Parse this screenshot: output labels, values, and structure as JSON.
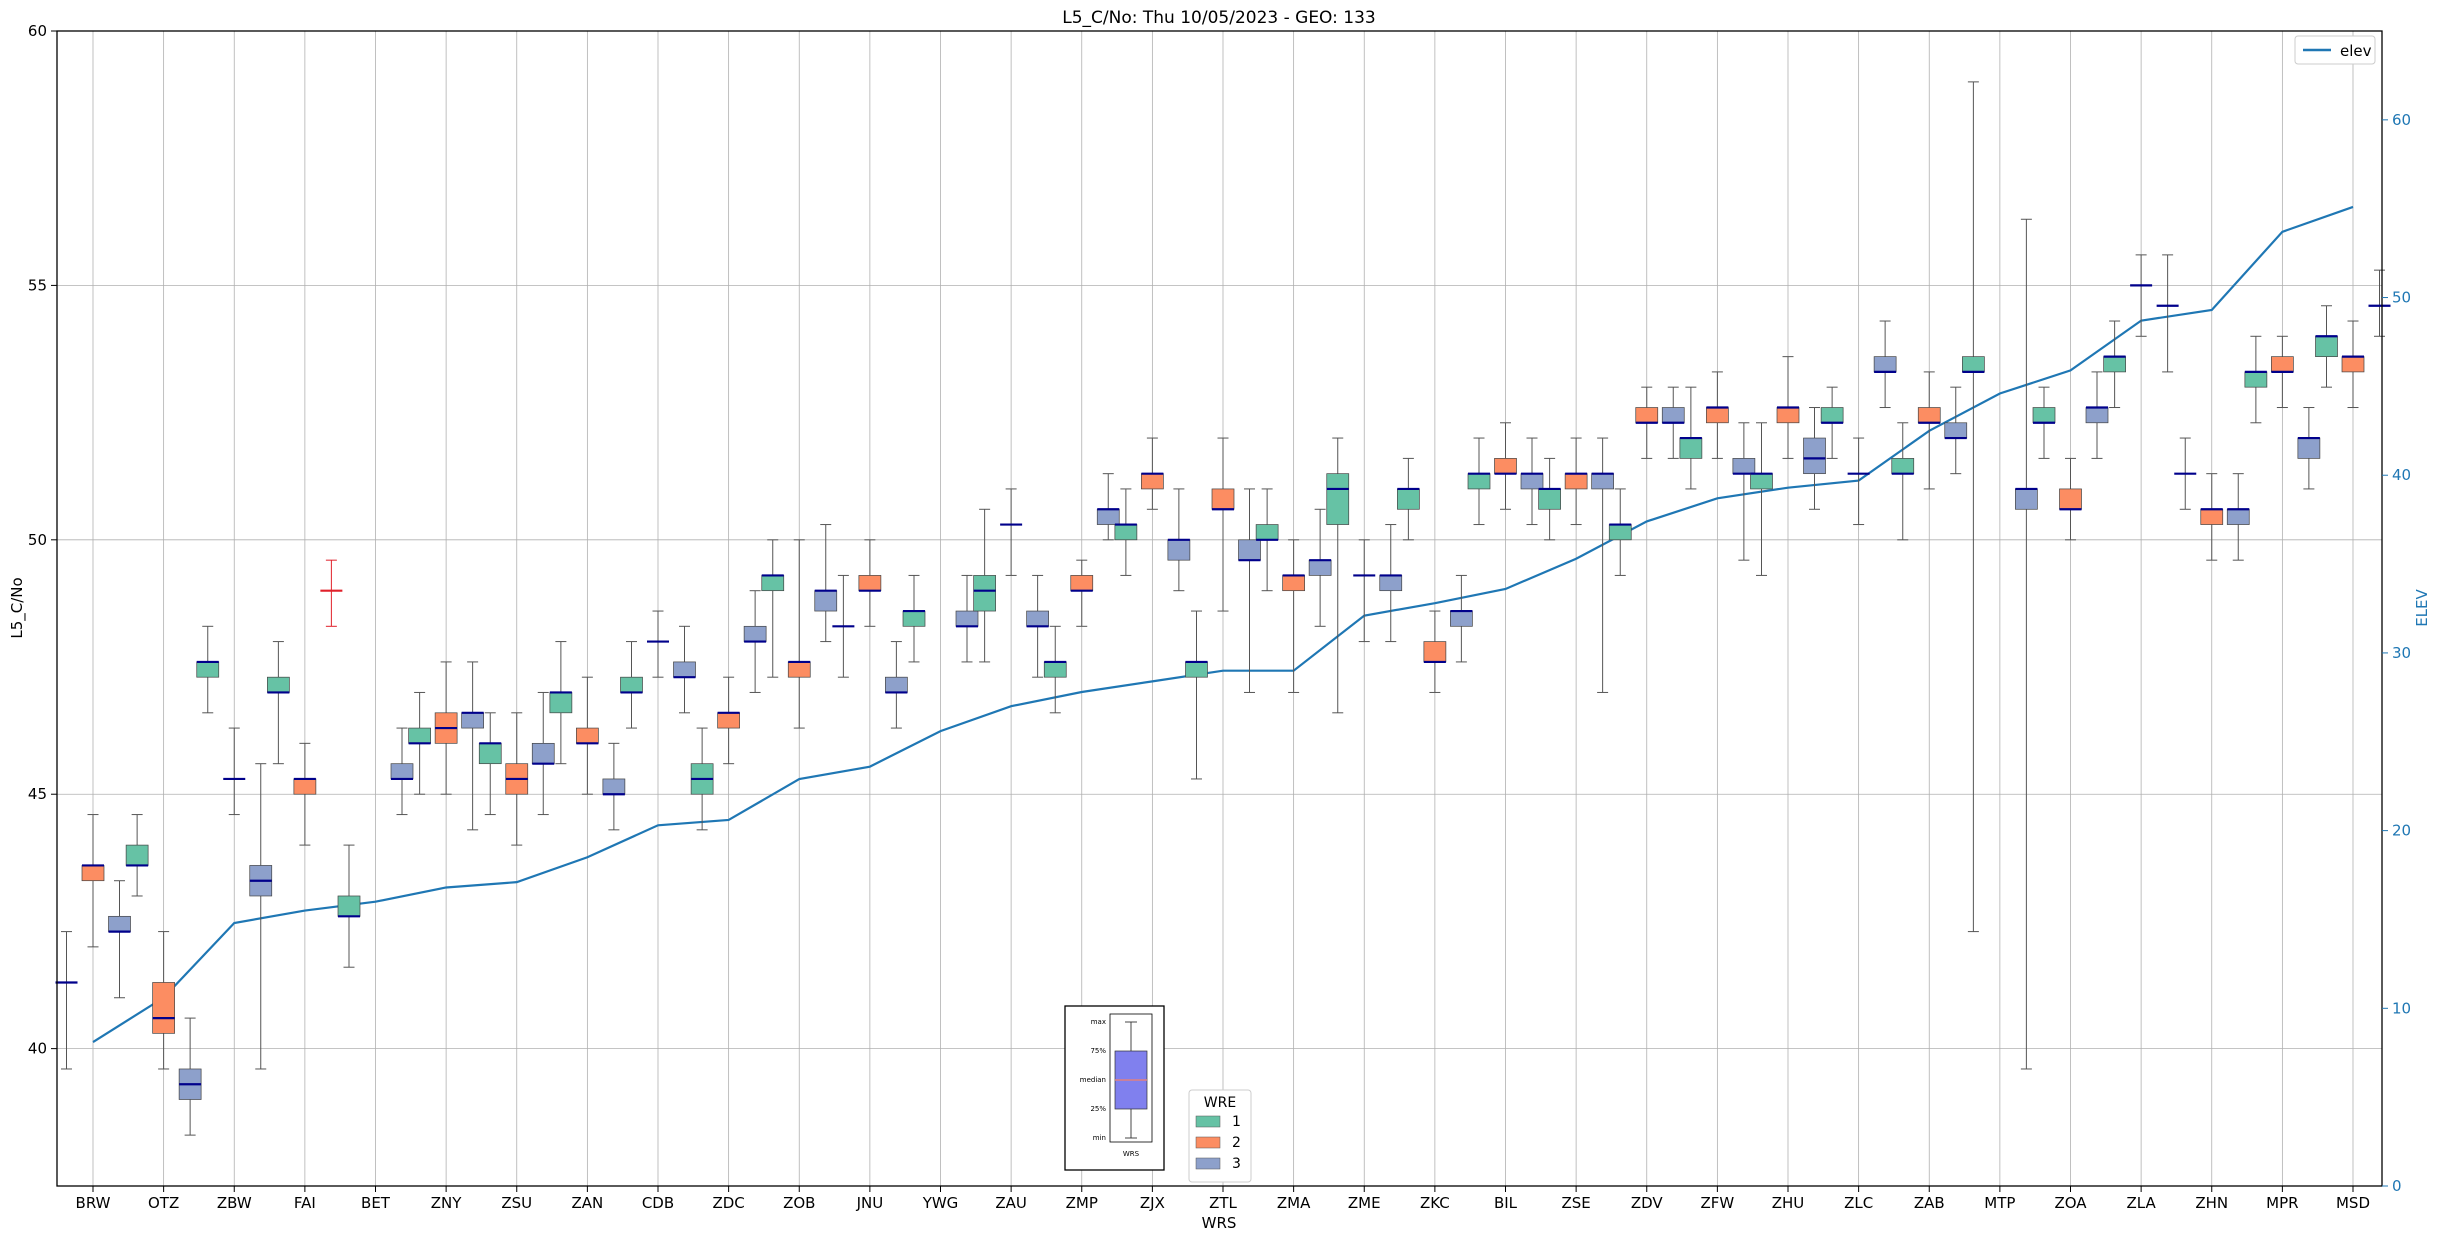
{
  "chart_data": {
    "type": "box",
    "title": "L5_C/No: Thu 10/05/2023 - GEO: 133",
    "xlabel": "WRS",
    "ylabel": "L5_C/No",
    "y2label": "ELEV",
    "ylim": [
      37.3,
      60
    ],
    "y2lim": [
      0,
      65
    ],
    "yticks": [
      40,
      45,
      50,
      55,
      60
    ],
    "y2ticks": [
      0,
      10,
      20,
      30,
      40,
      50,
      60
    ],
    "grid": true,
    "legend_position": "top-right",
    "legend_label": "elev",
    "series_legend_title": "WRE",
    "series_colors": {
      "1": "#66c2a5",
      "2": "#fc8d62",
      "3": "#8da0cb"
    },
    "elev_color": "#1f77b4",
    "median_color": "#00008b",
    "categories": [
      "BRW",
      "OTZ",
      "ZBW",
      "FAI",
      "BET",
      "ZNY",
      "ZSU",
      "ZAN",
      "CDB",
      "ZDC",
      "ZOB",
      "JNU",
      "YWG",
      "ZAU",
      "ZMP",
      "ZJX",
      "ZTL",
      "ZMA",
      "ZME",
      "ZKC",
      "BIL",
      "ZSE",
      "ZDV",
      "ZFW",
      "ZHU",
      "ZLC",
      "ZAB",
      "MTP",
      "ZOA",
      "ZLA",
      "ZHN",
      "MPR",
      "MSD"
    ],
    "elev": [
      8.1,
      10.6,
      14.8,
      15.5,
      16.0,
      16.8,
      17.1,
      18.5,
      20.3,
      20.6,
      22.9,
      23.6,
      25.6,
      27.0,
      27.8,
      28.4,
      29.0,
      29.0,
      32.1,
      32.8,
      33.6,
      35.3,
      37.4,
      38.7,
      39.3,
      39.7,
      42.5,
      44.6,
      45.9,
      48.7,
      49.3,
      53.7,
      55.1
    ],
    "boxes": [
      {
        "station": "BRW",
        "wre": 1,
        "min": 39.6,
        "q1": 41.3,
        "median": 41.3,
        "q3": 41.3,
        "max": 42.3
      },
      {
        "station": "BRW",
        "wre": 2,
        "min": 42.0,
        "q1": 43.3,
        "median": 43.6,
        "q3": 43.6,
        "max": 44.6
      },
      {
        "station": "BRW",
        "wre": 3,
        "min": 41.0,
        "q1": 42.3,
        "median": 42.3,
        "q3": 42.6,
        "max": 43.3
      },
      {
        "station": "OTZ",
        "wre": 1,
        "min": 43.0,
        "q1": 43.6,
        "median": 43.6,
        "q3": 44.0,
        "max": 44.6
      },
      {
        "station": "OTZ",
        "wre": 2,
        "min": 39.6,
        "q1": 40.3,
        "median": 40.6,
        "q3": 41.3,
        "max": 42.3
      },
      {
        "station": "OTZ",
        "wre": 3,
        "min": 38.3,
        "q1": 39.0,
        "median": 39.3,
        "q3": 39.6,
        "max": 40.6
      },
      {
        "station": "ZBW",
        "wre": 1,
        "min": 46.6,
        "q1": 47.3,
        "median": 47.6,
        "q3": 47.6,
        "max": 48.3
      },
      {
        "station": "ZBW",
        "wre": 2,
        "min": 44.6,
        "q1": 45.3,
        "median": 45.3,
        "q3": 45.3,
        "max": 46.3
      },
      {
        "station": "ZBW",
        "wre": 3,
        "min": 39.6,
        "q1": 43.0,
        "median": 43.3,
        "q3": 43.6,
        "max": 45.6
      },
      {
        "station": "FAI",
        "wre": 1,
        "min": 45.6,
        "q1": 47.0,
        "median": 47.0,
        "q3": 47.3,
        "max": 48.0
      },
      {
        "station": "FAI",
        "wre": 2,
        "min": 44.0,
        "q1": 45.0,
        "median": 45.3,
        "q3": 45.3,
        "max": 46.0
      },
      {
        "station": "FAI",
        "wre": 3,
        "min": 48.3,
        "q1": 49.0,
        "median": 49.0,
        "q3": 49.0,
        "max": 49.6,
        "outlier": true
      },
      {
        "station": "BET",
        "wre": 1,
        "min": 41.6,
        "q1": 42.6,
        "median": 42.6,
        "q3": 43.0,
        "max": 44.0
      },
      {
        "station": "BET",
        "wre": 3,
        "min": 44.6,
        "q1": 45.3,
        "median": 45.3,
        "q3": 45.6,
        "max": 46.3
      },
      {
        "station": "ZNY",
        "wre": 1,
        "min": 45.0,
        "q1": 46.0,
        "median": 46.0,
        "q3": 46.3,
        "max": 47.0
      },
      {
        "station": "ZNY",
        "wre": 2,
        "min": 45.0,
        "q1": 46.0,
        "median": 46.3,
        "q3": 46.6,
        "max": 47.6
      },
      {
        "station": "ZNY",
        "wre": 3,
        "min": 44.3,
        "q1": 46.3,
        "median": 46.6,
        "q3": 46.6,
        "max": 47.6
      },
      {
        "station": "ZSU",
        "wre": 1,
        "min": 44.6,
        "q1": 45.6,
        "median": 46.0,
        "q3": 46.0,
        "max": 46.6
      },
      {
        "station": "ZSU",
        "wre": 2,
        "min": 44.0,
        "q1": 45.0,
        "median": 45.3,
        "q3": 45.6,
        "max": 46.6
      },
      {
        "station": "ZSU",
        "wre": 3,
        "min": 44.6,
        "q1": 45.6,
        "median": 45.6,
        "q3": 46.0,
        "max": 47.0
      },
      {
        "station": "ZAN",
        "wre": 1,
        "min": 45.6,
        "q1": 46.6,
        "median": 47.0,
        "q3": 47.0,
        "max": 48.0
      },
      {
        "station": "ZAN",
        "wre": 2,
        "min": 45.0,
        "q1": 46.0,
        "median": 46.0,
        "q3": 46.3,
        "max": 47.3
      },
      {
        "station": "ZAN",
        "wre": 3,
        "min": 44.3,
        "q1": 45.0,
        "median": 45.0,
        "q3": 45.3,
        "max": 46.0
      },
      {
        "station": "CDB",
        "wre": 1,
        "min": 46.3,
        "q1": 47.0,
        "median": 47.0,
        "q3": 47.3,
        "max": 48.0
      },
      {
        "station": "CDB",
        "wre": 2,
        "min": 47.3,
        "q1": 48.0,
        "median": 48.0,
        "q3": 48.0,
        "max": 48.6
      },
      {
        "station": "CDB",
        "wre": 3,
        "min": 46.6,
        "q1": 47.3,
        "median": 47.3,
        "q3": 47.6,
        "max": 48.3
      },
      {
        "station": "ZDC",
        "wre": 1,
        "min": 44.3,
        "q1": 45.0,
        "median": 45.3,
        "q3": 45.6,
        "max": 46.3
      },
      {
        "station": "ZDC",
        "wre": 2,
        "min": 45.6,
        "q1": 46.3,
        "median": 46.6,
        "q3": 46.6,
        "max": 47.3
      },
      {
        "station": "ZDC",
        "wre": 3,
        "min": 47.0,
        "q1": 48.0,
        "median": 48.0,
        "q3": 48.3,
        "max": 49.0
      },
      {
        "station": "ZOB",
        "wre": 1,
        "min": 47.3,
        "q1": 49.0,
        "median": 49.3,
        "q3": 49.3,
        "max": 50.0
      },
      {
        "station": "ZOB",
        "wre": 2,
        "min": 46.3,
        "q1": 47.3,
        "median": 47.6,
        "q3": 47.6,
        "max": 50.0
      },
      {
        "station": "ZOB",
        "wre": 3,
        "min": 48.0,
        "q1": 48.6,
        "median": 49.0,
        "q3": 49.0,
        "max": 50.3
      },
      {
        "station": "JNU",
        "wre": 1,
        "min": 47.3,
        "q1": 48.3,
        "median": 48.3,
        "q3": 48.3,
        "max": 49.3
      },
      {
        "station": "JNU",
        "wre": 2,
        "min": 48.3,
        "q1": 49.0,
        "median": 49.0,
        "q3": 49.3,
        "max": 50.0
      },
      {
        "station": "JNU",
        "wre": 3,
        "min": 46.3,
        "q1": 47.0,
        "median": 47.0,
        "q3": 47.3,
        "max": 48.0
      },
      {
        "station": "YWG",
        "wre": 1,
        "min": 47.6,
        "q1": 48.3,
        "median": 48.6,
        "q3": 48.6,
        "max": 49.3
      },
      {
        "station": "YWG",
        "wre": 3,
        "min": 47.6,
        "q1": 48.3,
        "median": 48.3,
        "q3": 48.6,
        "max": 49.3
      },
      {
        "station": "ZAU",
        "wre": 1,
        "min": 47.6,
        "q1": 48.6,
        "median": 49.0,
        "q3": 49.3,
        "max": 50.6
      },
      {
        "station": "ZAU",
        "wre": 2,
        "min": 49.3,
        "q1": 50.3,
        "median": 50.3,
        "q3": 50.3,
        "max": 51.0
      },
      {
        "station": "ZAU",
        "wre": 3,
        "min": 47.3,
        "q1": 48.3,
        "median": 48.3,
        "q3": 48.6,
        "max": 49.3
      },
      {
        "station": "ZMP",
        "wre": 1,
        "min": 46.6,
        "q1": 47.3,
        "median": 47.6,
        "q3": 47.6,
        "max": 48.3
      },
      {
        "station": "ZMP",
        "wre": 2,
        "min": 48.3,
        "q1": 49.0,
        "median": 49.0,
        "q3": 49.3,
        "max": 49.6
      },
      {
        "station": "ZMP",
        "wre": 3,
        "min": 50.0,
        "q1": 50.3,
        "median": 50.6,
        "q3": 50.6,
        "max": 51.3
      },
      {
        "station": "ZJX",
        "wre": 1,
        "min": 49.3,
        "q1": 50.0,
        "median": 50.3,
        "q3": 50.3,
        "max": 51.0
      },
      {
        "station": "ZJX",
        "wre": 2,
        "min": 50.6,
        "q1": 51.0,
        "median": 51.3,
        "q3": 51.3,
        "max": 52.0
      },
      {
        "station": "ZJX",
        "wre": 3,
        "min": 49.0,
        "q1": 49.6,
        "median": 50.0,
        "q3": 50.0,
        "max": 51.0
      },
      {
        "station": "ZTL",
        "wre": 1,
        "min": 45.3,
        "q1": 47.3,
        "median": 47.6,
        "q3": 47.6,
        "max": 48.6
      },
      {
        "station": "ZTL",
        "wre": 2,
        "min": 48.6,
        "q1": 50.6,
        "median": 50.6,
        "q3": 51.0,
        "max": 52.0
      },
      {
        "station": "ZTL",
        "wre": 3,
        "min": 47.0,
        "q1": 49.6,
        "median": 49.6,
        "q3": 50.0,
        "max": 51.0
      },
      {
        "station": "ZMA",
        "wre": 1,
        "min": 49.0,
        "q1": 50.0,
        "median": 50.0,
        "q3": 50.3,
        "max": 51.0
      },
      {
        "station": "ZMA",
        "wre": 2,
        "min": 47.0,
        "q1": 49.0,
        "median": 49.3,
        "q3": 49.3,
        "max": 50.0
      },
      {
        "station": "ZMA",
        "wre": 3,
        "min": 48.3,
        "q1": 49.3,
        "median": 49.6,
        "q3": 49.6,
        "max": 50.6
      },
      {
        "station": "ZME",
        "wre": 1,
        "min": 46.6,
        "q1": 50.3,
        "median": 51.0,
        "q3": 51.3,
        "max": 52.0
      },
      {
        "station": "ZME",
        "wre": 2,
        "min": 48.0,
        "q1": 49.3,
        "median": 49.3,
        "q3": 49.3,
        "max": 50.0
      },
      {
        "station": "ZME",
        "wre": 3,
        "min": 48.0,
        "q1": 49.0,
        "median": 49.3,
        "q3": 49.3,
        "max": 50.3
      },
      {
        "station": "ZKC",
        "wre": 1,
        "min": 50.0,
        "q1": 50.6,
        "median": 51.0,
        "q3": 51.0,
        "max": 51.6
      },
      {
        "station": "ZKC",
        "wre": 2,
        "min": 47.0,
        "q1": 47.6,
        "median": 47.6,
        "q3": 48.0,
        "max": 48.6
      },
      {
        "station": "ZKC",
        "wre": 3,
        "min": 47.6,
        "q1": 48.3,
        "median": 48.6,
        "q3": 48.6,
        "max": 49.3
      },
      {
        "station": "BIL",
        "wre": 1,
        "min": 50.3,
        "q1": 51.0,
        "median": 51.3,
        "q3": 51.3,
        "max": 52.0
      },
      {
        "station": "BIL",
        "wre": 2,
        "min": 50.6,
        "q1": 51.3,
        "median": 51.3,
        "q3": 51.6,
        "max": 52.3
      },
      {
        "station": "BIL",
        "wre": 3,
        "min": 50.3,
        "q1": 51.0,
        "median": 51.3,
        "q3": 51.3,
        "max": 52.0
      },
      {
        "station": "ZSE",
        "wre": 1,
        "min": 50.0,
        "q1": 50.6,
        "median": 51.0,
        "q3": 51.0,
        "max": 51.6
      },
      {
        "station": "ZSE",
        "wre": 2,
        "min": 50.3,
        "q1": 51.0,
        "median": 51.3,
        "q3": 51.3,
        "max": 52.0
      },
      {
        "station": "ZSE",
        "wre": 3,
        "min": 47.0,
        "q1": 51.0,
        "median": 51.3,
        "q3": 51.3,
        "max": 52.0
      },
      {
        "station": "ZDV",
        "wre": 1,
        "min": 49.3,
        "q1": 50.0,
        "median": 50.3,
        "q3": 50.3,
        "max": 51.0
      },
      {
        "station": "ZDV",
        "wre": 2,
        "min": 51.6,
        "q1": 52.3,
        "median": 52.3,
        "q3": 52.6,
        "max": 53.0
      },
      {
        "station": "ZDV",
        "wre": 3,
        "min": 51.6,
        "q1": 52.3,
        "median": 52.3,
        "q3": 52.6,
        "max": 53.0
      },
      {
        "station": "ZFW",
        "wre": 1,
        "min": 51.0,
        "q1": 51.6,
        "median": 52.0,
        "q3": 52.0,
        "max": 53.0
      },
      {
        "station": "ZFW",
        "wre": 2,
        "min": 51.6,
        "q1": 52.3,
        "median": 52.6,
        "q3": 52.6,
        "max": 53.3
      },
      {
        "station": "ZFW",
        "wre": 3,
        "min": 49.6,
        "q1": 51.3,
        "median": 51.3,
        "q3": 51.6,
        "max": 52.3
      },
      {
        "station": "ZHU",
        "wre": 1,
        "min": 49.3,
        "q1": 51.0,
        "median": 51.3,
        "q3": 51.3,
        "max": 52.3
      },
      {
        "station": "ZHU",
        "wre": 2,
        "min": 51.6,
        "q1": 52.3,
        "median": 52.6,
        "q3": 52.6,
        "max": 53.6
      },
      {
        "station": "ZHU",
        "wre": 3,
        "min": 50.6,
        "q1": 51.3,
        "median": 51.6,
        "q3": 52.0,
        "max": 52.6
      },
      {
        "station": "ZLC",
        "wre": 1,
        "min": 51.6,
        "q1": 52.3,
        "median": 52.3,
        "q3": 52.6,
        "max": 53.0
      },
      {
        "station": "ZLC",
        "wre": 2,
        "min": 50.3,
        "q1": 51.3,
        "median": 51.3,
        "q3": 51.3,
        "max": 52.0
      },
      {
        "station": "ZLC",
        "wre": 3,
        "min": 52.6,
        "q1": 53.3,
        "median": 53.3,
        "q3": 53.6,
        "max": 54.3
      },
      {
        "station": "ZAB",
        "wre": 1,
        "min": 50.0,
        "q1": 51.3,
        "median": 51.3,
        "q3": 51.6,
        "max": 52.3
      },
      {
        "station": "ZAB",
        "wre": 2,
        "min": 51.0,
        "q1": 52.3,
        "median": 52.3,
        "q3": 52.6,
        "max": 53.3
      },
      {
        "station": "ZAB",
        "wre": 3,
        "min": 51.3,
        "q1": 52.0,
        "median": 52.0,
        "q3": 52.3,
        "max": 53.0
      },
      {
        "station": "MTP",
        "wre": 1,
        "min": 42.3,
        "q1": 53.3,
        "median": 53.3,
        "q3": 53.6,
        "max": 59.0
      },
      {
        "station": "MTP",
        "wre": 3,
        "min": 39.6,
        "q1": 50.6,
        "median": 51.0,
        "q3": 51.0,
        "max": 56.3
      },
      {
        "station": "ZOA",
        "wre": 1,
        "min": 51.6,
        "q1": 52.3,
        "median": 52.3,
        "q3": 52.6,
        "max": 53.0
      },
      {
        "station": "ZOA",
        "wre": 2,
        "min": 50.0,
        "q1": 50.6,
        "median": 50.6,
        "q3": 51.0,
        "max": 51.6
      },
      {
        "station": "ZOA",
        "wre": 3,
        "min": 51.6,
        "q1": 52.3,
        "median": 52.6,
        "q3": 52.6,
        "max": 53.3
      },
      {
        "station": "ZLA",
        "wre": 1,
        "min": 52.6,
        "q1": 53.3,
        "median": 53.6,
        "q3": 53.6,
        "max": 54.3
      },
      {
        "station": "ZLA",
        "wre": 2,
        "min": 54.0,
        "q1": 55.0,
        "median": 55.0,
        "q3": 55.0,
        "max": 55.6
      },
      {
        "station": "ZLA",
        "wre": 3,
        "min": 53.3,
        "q1": 54.6,
        "median": 54.6,
        "q3": 54.6,
        "max": 55.6
      },
      {
        "station": "ZHN",
        "wre": 1,
        "min": 50.6,
        "q1": 51.3,
        "median": 51.3,
        "q3": 51.3,
        "max": 52.0
      },
      {
        "station": "ZHN",
        "wre": 2,
        "min": 49.6,
        "q1": 50.3,
        "median": 50.6,
        "q3": 50.6,
        "max": 51.3
      },
      {
        "station": "ZHN",
        "wre": 3,
        "min": 49.6,
        "q1": 50.3,
        "median": 50.6,
        "q3": 50.6,
        "max": 51.3
      },
      {
        "station": "MPR",
        "wre": 1,
        "min": 52.3,
        "q1": 53.0,
        "median": 53.3,
        "q3": 53.3,
        "max": 54.0
      },
      {
        "station": "MPR",
        "wre": 2,
        "min": 52.6,
        "q1": 53.3,
        "median": 53.3,
        "q3": 53.6,
        "max": 54.0
      },
      {
        "station": "MPR",
        "wre": 3,
        "min": 51.0,
        "q1": 51.6,
        "median": 52.0,
        "q3": 52.0,
        "max": 52.6
      },
      {
        "station": "MSD",
        "wre": 1,
        "min": 53.0,
        "q1": 53.6,
        "median": 54.0,
        "q3": 54.0,
        "max": 54.6
      },
      {
        "station": "MSD",
        "wre": 2,
        "min": 52.6,
        "q1": 53.3,
        "median": 53.6,
        "q3": 53.6,
        "max": 54.3
      },
      {
        "station": "MSD",
        "wre": 3,
        "min": 54.0,
        "q1": 54.6,
        "median": 54.6,
        "q3": 54.6,
        "max": 55.3
      }
    ],
    "box_key": {
      "labels": [
        "max",
        "75%",
        "median",
        "25%",
        "min"
      ],
      "caption": "WRS",
      "fill_color": "#8080ee",
      "median_color": "#e08080"
    }
  }
}
